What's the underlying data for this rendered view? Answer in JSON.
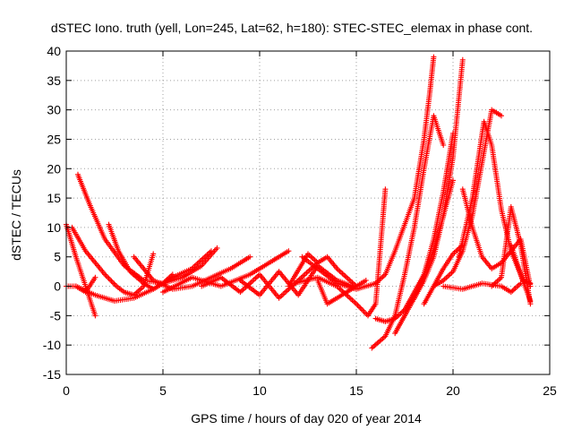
{
  "chart_data": {
    "type": "scatter",
    "title": "dSTEC Iono. truth (yell, Lon=245, Lat=62, h=180): STEC-STEC_elemax in phase cont.",
    "xlabel": "GPS time / hours of day 020 of year 2014",
    "ylabel": "dSTEC  / TECUs",
    "xlim": [
      0,
      25
    ],
    "ylim": [
      -15,
      40
    ],
    "xticks": [
      "0",
      "5",
      "10",
      "15",
      "20",
      "25"
    ],
    "yticks": [
      "-15",
      "-10",
      "-5",
      "0",
      "5",
      "10",
      "15",
      "20",
      "25",
      "30",
      "35",
      "40"
    ],
    "grid": true,
    "marker": "plus",
    "color": "#ff0000",
    "series": [
      {
        "x": [
          0.0,
          0.5,
          1.0,
          1.5
        ],
        "y": [
          10.5,
          5.0,
          0.0,
          -5.0
        ]
      },
      {
        "x": [
          0.0,
          0.5,
          1.0,
          1.5
        ],
        "y": [
          0.0,
          0.0,
          -1.0,
          1.5
        ]
      },
      {
        "x": [
          0.6,
          1.2,
          2.0,
          3.0,
          4.0,
          5.0,
          6.0,
          7.0,
          7.8
        ],
        "y": [
          19.0,
          14.0,
          8.0,
          3.5,
          1.0,
          0.5,
          1.5,
          3.5,
          6.5
        ]
      },
      {
        "x": [
          0.3,
          1.0,
          2.0,
          2.6,
          3.0,
          3.5,
          4.0,
          4.5
        ],
        "y": [
          10.0,
          6.0,
          2.0,
          0.0,
          -1.0,
          -1.5,
          0.0,
          5.5
        ]
      },
      {
        "x": [
          0.5,
          1.5,
          2.5,
          3.5,
          4.5,
          5.5,
          6.5,
          7.5
        ],
        "y": [
          0.0,
          -1.5,
          -2.5,
          -2.0,
          -0.5,
          1.5,
          3.0,
          6.0
        ]
      },
      {
        "x": [
          2.2,
          2.7,
          3.3,
          4.0,
          4.5,
          5.0,
          5.5
        ],
        "y": [
          10.5,
          6.0,
          2.5,
          0.5,
          -0.5,
          0.5,
          2.0
        ]
      },
      {
        "x": [
          3.5,
          4.5,
          5.5,
          6.5,
          7.5,
          8.5,
          9.5
        ],
        "y": [
          5.0,
          1.0,
          -0.5,
          0.0,
          1.5,
          3.0,
          5.0
        ]
      },
      {
        "x": [
          5.0,
          6.5,
          8.0,
          9.5,
          10.5,
          11.5
        ],
        "y": [
          -1.0,
          1.5,
          0.0,
          2.0,
          4.0,
          6.0
        ]
      },
      {
        "x": [
          7.0,
          8.0,
          9.0,
          10.0,
          11.0,
          12.0,
          13.0
        ],
        "y": [
          0.0,
          1.5,
          -1.0,
          2.0,
          -2.0,
          1.0,
          4.0
        ]
      },
      {
        "x": [
          9.0,
          10.0,
          11.0,
          12.0,
          13.0,
          14.0,
          14.8
        ],
        "y": [
          1.0,
          -1.5,
          2.5,
          -1.5,
          3.5,
          1.0,
          0.0
        ]
      },
      {
        "x": [
          11.5,
          12.5,
          13.0,
          13.5,
          14.0,
          15.0
        ],
        "y": [
          0.0,
          5.5,
          4.0,
          5.0,
          3.0,
          0.0
        ]
      },
      {
        "x": [
          11.8,
          13.0,
          14.0,
          15.0,
          15.6,
          16.0,
          16.5
        ],
        "y": [
          0.5,
          1.5,
          0.0,
          -3.0,
          -5.0,
          -3.0,
          16.5
        ]
      },
      {
        "x": [
          12.2,
          13.0,
          14.0,
          15.0,
          16.0,
          16.5,
          17.0,
          18.0,
          18.5,
          18.8,
          19.0
        ],
        "y": [
          5.0,
          3.0,
          0.5,
          -0.5,
          0.5,
          2.0,
          6.0,
          15.0,
          25.0,
          33.0,
          39.0
        ]
      },
      {
        "x": [
          13.0,
          13.5,
          14.5,
          15.5
        ],
        "y": [
          1.0,
          -3.0,
          -1.0,
          1.0
        ]
      },
      {
        "x": [
          15.8,
          16.5,
          17.0,
          17.5,
          18.0,
          18.5,
          19.0,
          19.5
        ],
        "y": [
          -10.5,
          -8.5,
          -5.0,
          2.0,
          10.0,
          20.0,
          29.0,
          24.0
        ]
      },
      {
        "x": [
          16.0,
          16.5,
          17.0,
          17.5,
          18.0,
          18.5,
          19.0,
          19.5,
          20.0
        ],
        "y": [
          -5.5,
          -6.0,
          -5.5,
          -4.0,
          -2.0,
          2.0,
          8.0,
          16.0,
          26.0
        ]
      },
      {
        "x": [
          17.0,
          17.5,
          18.0,
          18.5,
          19.0,
          19.5,
          20.0,
          20.5
        ],
        "y": [
          -8.0,
          -5.0,
          -2.0,
          1.0,
          5.0,
          12.0,
          22.0,
          38.5
        ]
      },
      {
        "x": [
          17.5,
          18.0,
          18.5,
          19.0,
          19.5,
          20.0
        ],
        "y": [
          -4.0,
          -1.0,
          2.0,
          6.0,
          12.0,
          18.0
        ]
      },
      {
        "x": [
          18.5,
          19.0,
          19.5,
          20.0,
          20.5
        ],
        "y": [
          -3.0,
          0.0,
          3.0,
          5.5,
          7.0
        ]
      },
      {
        "x": [
          19.0,
          19.5,
          20.0,
          20.5,
          21.0,
          21.5,
          22.0,
          22.5
        ],
        "y": [
          0.0,
          1.0,
          2.5,
          6.0,
          12.0,
          21.0,
          30.0,
          29.0
        ]
      },
      {
        "x": [
          20.5,
          21.0,
          21.5,
          22.0,
          22.5,
          23.0,
          23.5,
          24.0
        ],
        "y": [
          16.5,
          10.0,
          5.0,
          3.0,
          4.0,
          6.0,
          8.0,
          0.0
        ]
      },
      {
        "x": [
          20.3,
          21.0,
          21.6,
          22.0,
          22.5,
          23.0,
          23.5,
          24.0
        ],
        "y": [
          5.0,
          15.0,
          28.0,
          24.0,
          13.0,
          6.0,
          2.0,
          -2.5
        ]
      },
      {
        "x": [
          19.5,
          20.5,
          21.5,
          22.5,
          23.0,
          23.5
        ],
        "y": [
          0.0,
          -0.5,
          0.5,
          0.0,
          -1.0,
          0.5
        ]
      },
      {
        "x": [
          22.0,
          22.5,
          23.0,
          23.5,
          24.0
        ],
        "y": [
          0.0,
          1.5,
          13.5,
          7.0,
          -3.0
        ]
      },
      {
        "x": [
          23.0,
          23.3,
          23.6,
          24.0
        ],
        "y": [
          7.0,
          4.0,
          1.0,
          0.5
        ]
      }
    ]
  }
}
